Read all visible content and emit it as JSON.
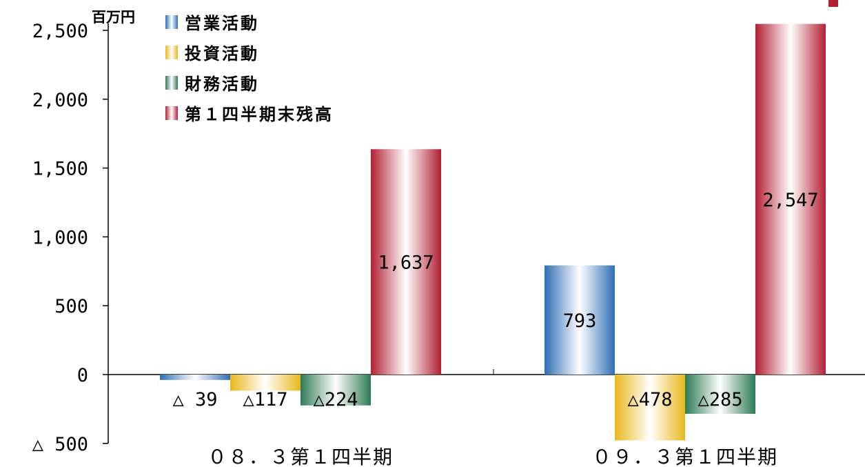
{
  "chart_data": {
    "type": "bar",
    "unit_label": "百万円",
    "categories": [
      "０８．３第１四半期",
      "０９．３第１四半期"
    ],
    "series": [
      {
        "name": "営業活動",
        "values": [
          -39,
          793
        ],
        "labels": [
          "△ 39",
          "793"
        ],
        "color": "#2e6fb5"
      },
      {
        "name": "投資活動",
        "values": [
          -117,
          -478
        ],
        "labels": [
          "△117",
          "△478"
        ],
        "color": "#e8b81c"
      },
      {
        "name": "財務活動",
        "values": [
          -224,
          -285
        ],
        "labels": [
          "△224",
          "△285"
        ],
        "color": "#2e7a55"
      },
      {
        "name": "第１四半期末残高",
        "values": [
          1637,
          2547
        ],
        "labels": [
          "1,637",
          "2,547"
        ],
        "color": "#b32035"
      }
    ],
    "yticks": [
      {
        "value": 2500,
        "label": "2,500"
      },
      {
        "value": 2000,
        "label": "2,000"
      },
      {
        "value": 1500,
        "label": "1,500"
      },
      {
        "value": 1000,
        "label": "1,000"
      },
      {
        "value": 500,
        "label": "500"
      },
      {
        "value": 0,
        "label": "0"
      },
      {
        "value": -500,
        "label": "△ 500"
      }
    ],
    "ylim": [
      -500,
      2500
    ],
    "grid": false,
    "legend": "top-left"
  }
}
